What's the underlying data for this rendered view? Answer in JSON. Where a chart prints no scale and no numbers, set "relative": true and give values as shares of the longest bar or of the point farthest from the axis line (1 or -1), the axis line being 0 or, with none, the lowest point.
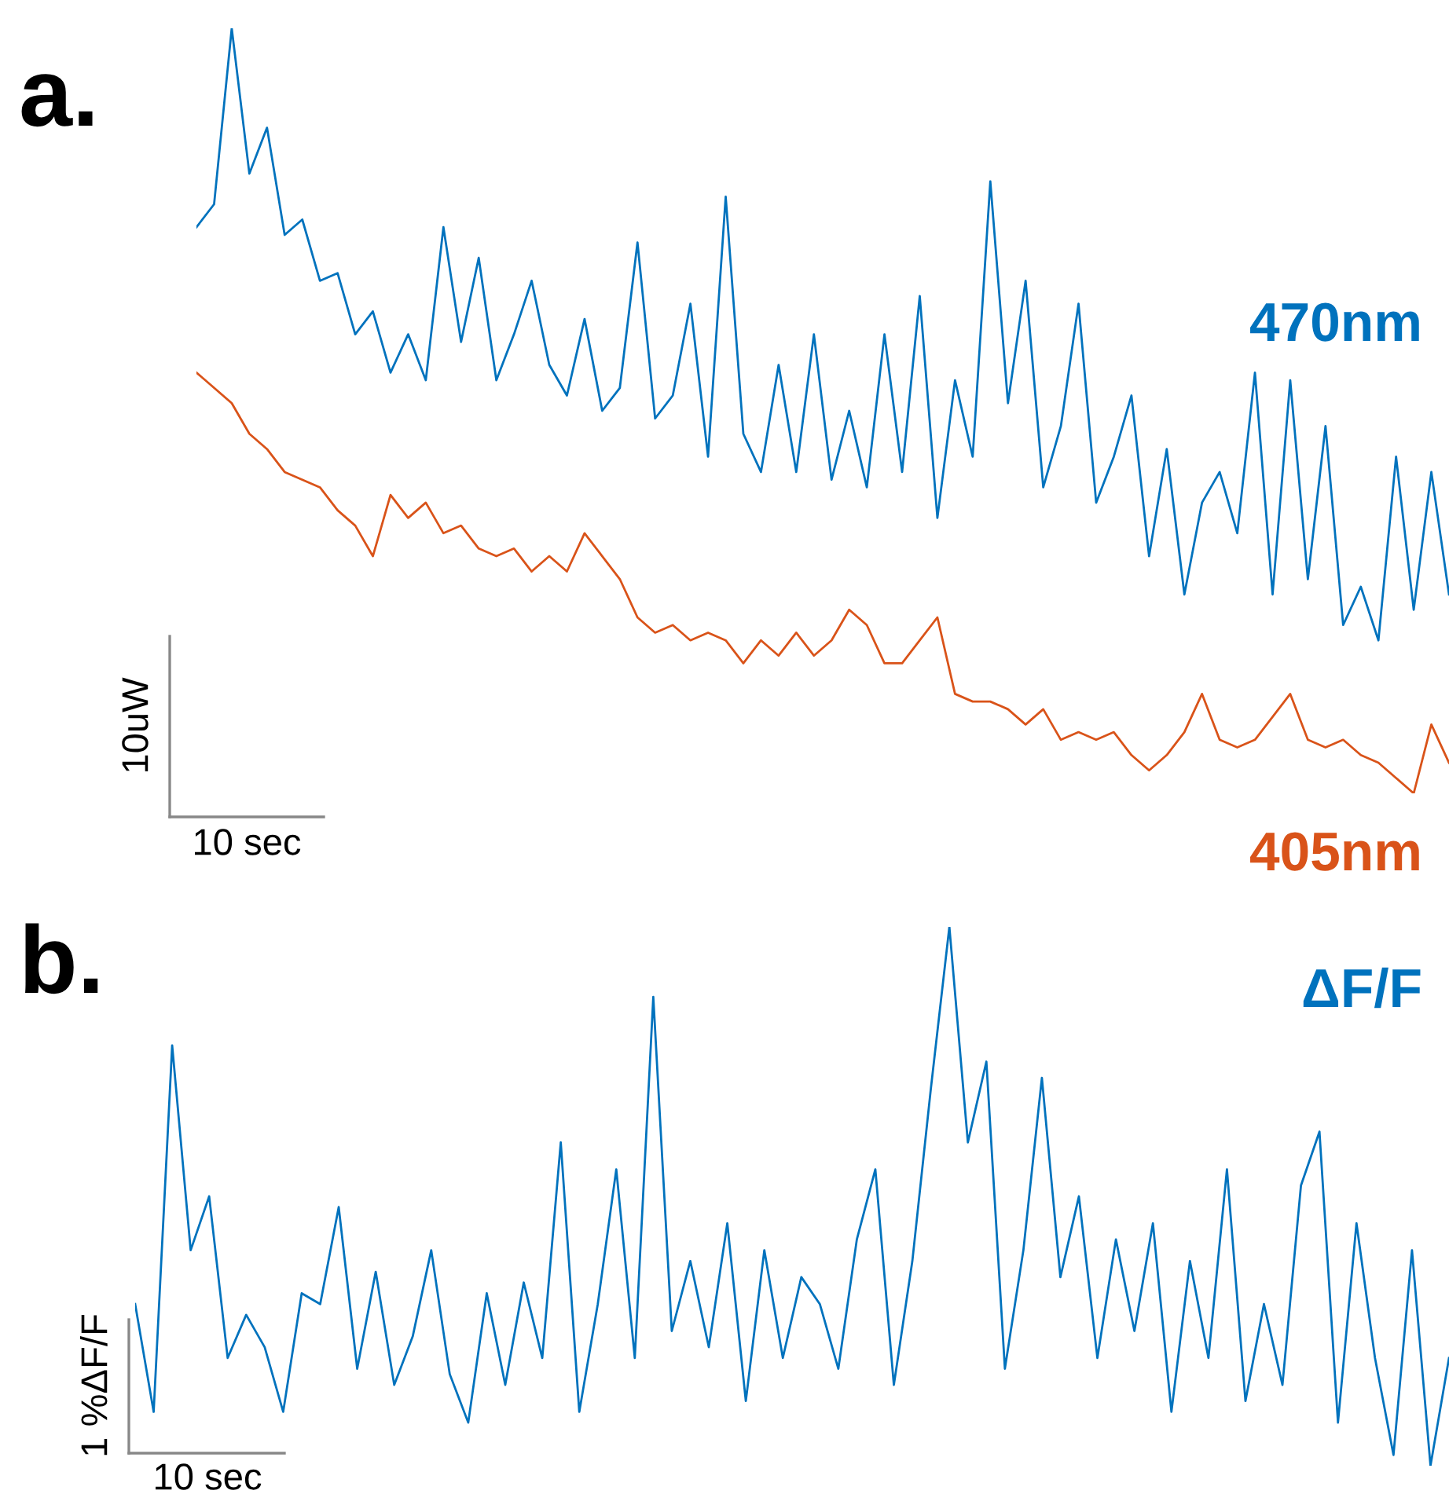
{
  "chart_data": [
    {
      "type": "line",
      "relative": true,
      "title": "a.",
      "legend": false,
      "categories": [
        null,
        null,
        null,
        null,
        null,
        null,
        null,
        null,
        null,
        null,
        null,
        null,
        null,
        null,
        null,
        null,
        null,
        null,
        null,
        null,
        null,
        null,
        null,
        null,
        null,
        null,
        null,
        null,
        null,
        null,
        null,
        null,
        null,
        null,
        null,
        null,
        null,
        null,
        null,
        null,
        null,
        null,
        null,
        null,
        null,
        null,
        null,
        null,
        null,
        null,
        null,
        null,
        null,
        null,
        null,
        null,
        null,
        null,
        null,
        null,
        null,
        null,
        null,
        null,
        null,
        null,
        null,
        null,
        null,
        null,
        null,
        null
      ],
      "series": [
        {
          "name": "470nm",
          "color": "#0072bd",
          "values": [
            0.74,
            0.77,
            1,
            0.81,
            0.87,
            0.73,
            0.75,
            0.67,
            0.68,
            0.6,
            0.63,
            0.55,
            0.6,
            0.54,
            0.74,
            0.59,
            0.7,
            0.54,
            0.6,
            0.67,
            0.56,
            0.52,
            0.62,
            0.5,
            0.53,
            0.72,
            0.49,
            0.52,
            0.64,
            0.44,
            0.78,
            0.47,
            0.42,
            0.56,
            0.42,
            0.6,
            0.41,
            0.5,
            0.4,
            0.6,
            0.42,
            0.65,
            0.36,
            0.54,
            0.44,
            0.8,
            0.51,
            0.67,
            0.4,
            0.48,
            0.64,
            0.38,
            0.44,
            0.52,
            0.31,
            0.45,
            0.26,
            0.38,
            0.42,
            0.34,
            0.55,
            0.26,
            0.54,
            0.28,
            0.48,
            0.22,
            0.27,
            0.2,
            0.44,
            0.24,
            0.42,
            0.26
          ]
        },
        {
          "name": "405nm",
          "color": "#d95319",
          "values": [
            0.55,
            0.53,
            0.51,
            0.47,
            0.45,
            0.42,
            0.41,
            0.4,
            0.37,
            0.35,
            0.31,
            0.39,
            0.36,
            0.38,
            0.34,
            0.35,
            0.32,
            0.31,
            0.32,
            0.29,
            0.31,
            0.29,
            0.34,
            0.31,
            0.28,
            0.23,
            0.21,
            0.22,
            0.2,
            0.21,
            0.2,
            0.17,
            0.2,
            0.18,
            0.21,
            0.18,
            0.2,
            0.24,
            0.22,
            0.17,
            0.17,
            0.2,
            0.23,
            0.13,
            0.12,
            0.12,
            0.11,
            0.09,
            0.11,
            0.07,
            0.08,
            0.07,
            0.08,
            0.05,
            0.03,
            0.05,
            0.08,
            0.13,
            0.07,
            0.06,
            0.07,
            0.1,
            0.13,
            0.07,
            0.06,
            0.07,
            0.05,
            0.04,
            0.02,
            0,
            0.09,
            0.04
          ]
        }
      ],
      "annotations": [
        "10uW",
        "10 sec"
      ]
    },
    {
      "type": "line",
      "relative": true,
      "title": "b.",
      "legend": false,
      "categories": [
        null,
        null,
        null,
        null,
        null,
        null,
        null,
        null,
        null,
        null,
        null,
        null,
        null,
        null,
        null,
        null,
        null,
        null,
        null,
        null,
        null,
        null,
        null,
        null,
        null,
        null,
        null,
        null,
        null,
        null,
        null,
        null,
        null,
        null,
        null,
        null,
        null,
        null,
        null,
        null,
        null,
        null,
        null,
        null,
        null,
        null,
        null,
        null,
        null,
        null,
        null,
        null,
        null,
        null,
        null,
        null,
        null,
        null,
        null,
        null,
        null,
        null,
        null,
        null,
        null,
        null,
        null,
        null,
        null,
        null,
        null,
        null
      ],
      "series": [
        {
          "name": "ΔF/F",
          "color": "#0072bd",
          "values": [
            0.3,
            0.1,
            0.78,
            0.4,
            0.5,
            0.2,
            0.28,
            0.22,
            0.1,
            0.32,
            0.3,
            0.48,
            0.18,
            0.36,
            0.15,
            0.24,
            0.4,
            0.17,
            0.08,
            0.32,
            0.15,
            0.34,
            0.2,
            0.6,
            0.1,
            0.3,
            0.55,
            0.2,
            0.87,
            0.25,
            0.38,
            0.22,
            0.45,
            0.12,
            0.4,
            0.2,
            0.35,
            0.3,
            0.18,
            0.42,
            0.55,
            0.15,
            0.38,
            0.7,
            1,
            0.6,
            0.75,
            0.18,
            0.4,
            0.72,
            0.35,
            0.5,
            0.2,
            0.42,
            0.25,
            0.45,
            0.1,
            0.38,
            0.2,
            0.55,
            0.12,
            0.3,
            0.15,
            0.52,
            0.62,
            0.08,
            0.45,
            0.2,
            0.02,
            0.4,
            0,
            0.2
          ]
        }
      ],
      "annotations": [
        "1 %ΔF/F",
        "10 sec"
      ]
    }
  ]
}
